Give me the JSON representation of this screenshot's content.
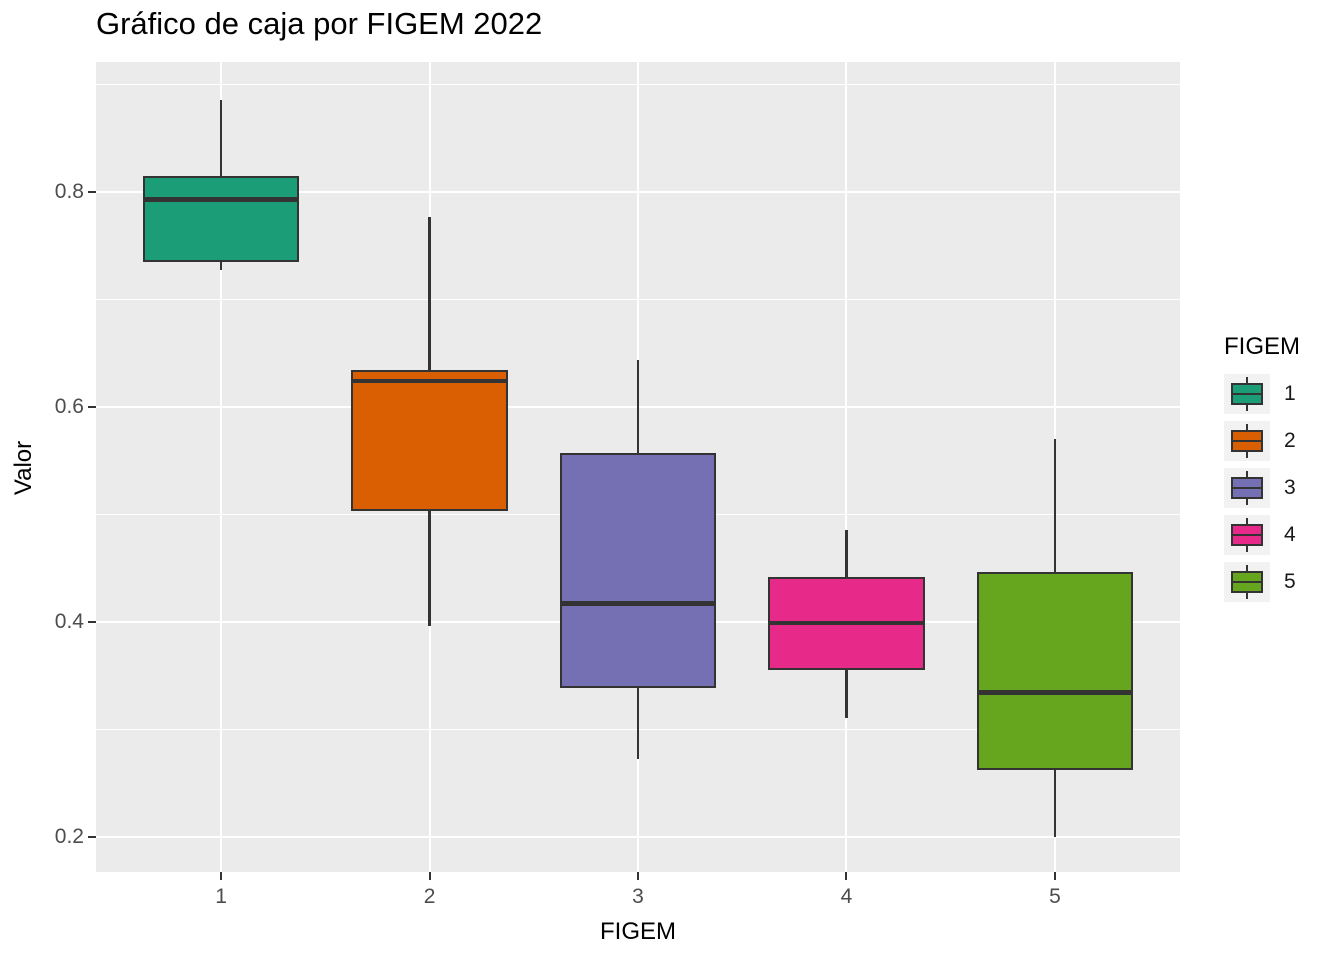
{
  "title": "Gráfico de caja por FIGEM 2022",
  "axes": {
    "x_label": "FIGEM",
    "y_label": "Valor",
    "x_tick_labels": [
      "1",
      "2",
      "3",
      "4",
      "5"
    ],
    "y_tick_labels": [
      "0.2",
      "0.4",
      "0.6",
      "0.8"
    ]
  },
  "legend": {
    "title": "FIGEM",
    "items": [
      {
        "label": "1",
        "color": "#1B9E77"
      },
      {
        "label": "2",
        "color": "#D95F02"
      },
      {
        "label": "3",
        "color": "#7570B3"
      },
      {
        "label": "4",
        "color": "#E7298A"
      },
      {
        "label": "5",
        "color": "#66A61E"
      }
    ]
  },
  "colors": {
    "panel_background": "#EBEBEB",
    "gridline": "#FFFFFF",
    "box_border": "#333333",
    "tick_mark": "#333333",
    "tick_text": "#4D4D4D",
    "title_text": "#000000",
    "legend_key_background": "#F2F2F2"
  },
  "chart_data": {
    "type": "boxplot",
    "title": "Gráfico de caja por FIGEM 2022",
    "xlabel": "FIGEM",
    "ylabel": "Valor",
    "categories": [
      "1",
      "2",
      "3",
      "4",
      "5"
    ],
    "ylim": [
      0.167,
      0.921
    ],
    "y_ticks": [
      0.2,
      0.4,
      0.6,
      0.8
    ],
    "y_minor_ticks": [
      0.3,
      0.5,
      0.7,
      0.9
    ],
    "grid": true,
    "legend_position": "right",
    "series": [
      {
        "category": "1",
        "color": "#1B9E77",
        "whisker_low": 0.727,
        "q1": 0.735,
        "median": 0.793,
        "q3": 0.815,
        "whisker_high": 0.886
      },
      {
        "category": "2",
        "color": "#D95F02",
        "whisker_low": 0.396,
        "q1": 0.503,
        "median": 0.624,
        "q3": 0.634,
        "whisker_high": 0.777
      },
      {
        "category": "3",
        "color": "#7570B3",
        "whisker_low": 0.272,
        "q1": 0.338,
        "median": 0.417,
        "q3": 0.557,
        "whisker_high": 0.644
      },
      {
        "category": "4",
        "color": "#E7298A",
        "whisker_low": 0.31,
        "q1": 0.355,
        "median": 0.399,
        "q3": 0.442,
        "whisker_high": 0.485
      },
      {
        "category": "5",
        "color": "#66A61E",
        "whisker_low": 0.2,
        "q1": 0.262,
        "median": 0.334,
        "q3": 0.446,
        "whisker_high": 0.57
      }
    ]
  }
}
